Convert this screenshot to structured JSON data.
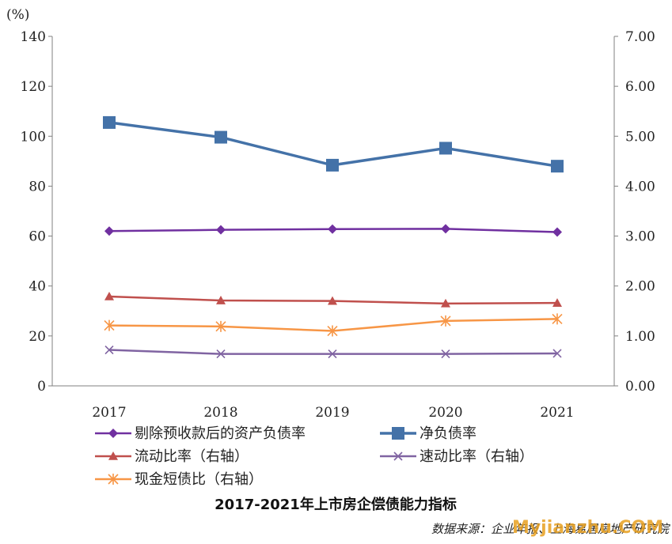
{
  "chart_data": {
    "type": "line",
    "title": "2017-2021年上市房企偿债能力指标",
    "unit_label": "(%)",
    "categories": [
      "2017",
      "2018",
      "2019",
      "2020",
      "2021"
    ],
    "y_left": {
      "min": 0,
      "max": 140,
      "ticks": [
        "0",
        "20",
        "40",
        "60",
        "80",
        "100",
        "120",
        "140"
      ]
    },
    "y_right": {
      "min": 0,
      "max": 7,
      "ticks": [
        "0.00",
        "1.00",
        "2.00",
        "3.00",
        "4.00",
        "5.00",
        "6.00",
        "7.00"
      ]
    },
    "series": [
      {
        "name": "剔除预收款后的资产负债率",
        "axis": "left",
        "color": "#7030A0",
        "marker": "diamond",
        "values": [
          62.0,
          62.5,
          62.8,
          62.9,
          61.6
        ]
      },
      {
        "name": "净负债率",
        "axis": "left",
        "color": "#4472A8",
        "marker": "square",
        "values": [
          105.5,
          99.6,
          88.4,
          95.2,
          88.0
        ]
      },
      {
        "name": "流动比率（右轴）",
        "axis": "right",
        "color": "#C0504D",
        "marker": "triangle",
        "values": [
          1.79,
          1.71,
          1.7,
          1.65,
          1.66
        ]
      },
      {
        "name": "速动比率（右轴）",
        "axis": "right",
        "color": "#8064A2",
        "marker": "x",
        "values": [
          0.72,
          0.64,
          0.64,
          0.64,
          0.65
        ]
      },
      {
        "name": "现金短债比（右轴）",
        "axis": "right",
        "color": "#F79646",
        "marker": "asterisk",
        "values": [
          1.21,
          1.19,
          1.1,
          1.3,
          1.34
        ]
      }
    ],
    "legend_position": "bottom",
    "grid": false
  },
  "source": "数据来源：企业年报、上海易居房地产研究院",
  "watermark": "Myjianzhu.COM"
}
